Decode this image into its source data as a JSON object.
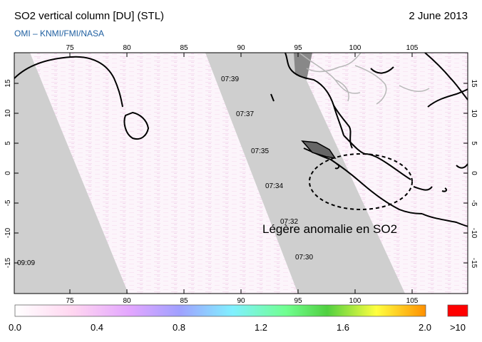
{
  "header": {
    "title": "SO2 vertical column [DU] (STL)",
    "date": "2 June 2013",
    "credit": "OMI  –  KNMI/FMI/NASA"
  },
  "map": {
    "lon_ticks": [
      "75",
      "80",
      "85",
      "90",
      "95",
      "100",
      "105"
    ],
    "lat_ticks": [
      "15",
      "10",
      "5",
      "0",
      "-5",
      "-10",
      "-15"
    ],
    "orbit_times": [
      "07:39",
      "07:37",
      "07:35",
      "07:34",
      "07:32",
      "07:30",
      "09:09"
    ],
    "annotation": "Légère anomalie en SO2",
    "colors": {
      "gap": "#cfcfcf",
      "land_dark": "#888888",
      "coast": "#000000",
      "border": "#b8b8b8"
    }
  },
  "colorbar": {
    "labels": [
      "0.0",
      "0.4",
      "0.8",
      "1.2",
      "1.6",
      "2.0"
    ],
    "over_label": ">10",
    "colors": [
      "#ffffff",
      "#ffd6f0",
      "#e3a6ff",
      "#a0a0ff",
      "#80f0ff",
      "#70ff90",
      "#50d040",
      "#ffff40",
      "#ff9000"
    ],
    "over_color": "#ff0000"
  }
}
